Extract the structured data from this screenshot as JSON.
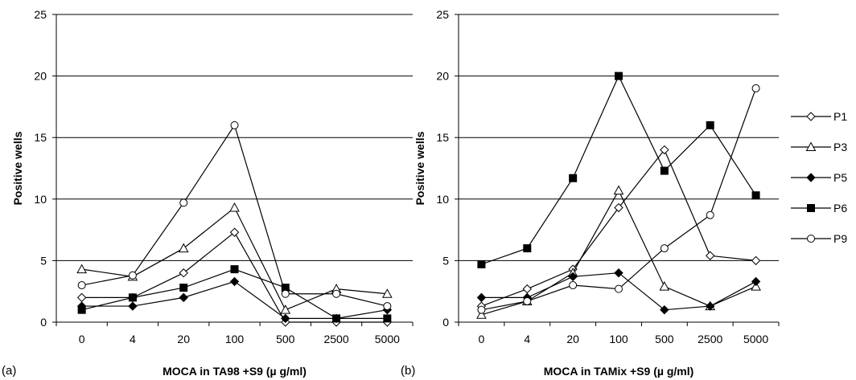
{
  "chart_data": [
    {
      "type": "line",
      "panel_label": "(a)",
      "xlabel": "MOCA in TA98 +S9 (µ g/ml)",
      "ylabel": "Positive wells",
      "categories": [
        "0",
        "4",
        "20",
        "100",
        "500",
        "2500",
        "5000"
      ],
      "ylim": [
        0,
        25
      ],
      "yticks": [
        "0",
        "5",
        "10",
        "15",
        "20",
        "25"
      ],
      "grid": "horizontal",
      "series": [
        {
          "name": "P1",
          "marker": "diamond-open",
          "values": [
            2.0,
            2.0,
            4.0,
            7.3,
            0.0,
            0.0,
            0.0
          ]
        },
        {
          "name": "P3",
          "marker": "triangle-open",
          "values": [
            4.3,
            3.7,
            6.0,
            9.3,
            1.0,
            2.7,
            2.3
          ]
        },
        {
          "name": "P5",
          "marker": "diamond-filled",
          "values": [
            1.3,
            1.3,
            2.0,
            3.3,
            0.3,
            0.3,
            1.0
          ]
        },
        {
          "name": "P6",
          "marker": "square-filled",
          "values": [
            1.0,
            2.0,
            2.8,
            4.3,
            2.8,
            0.3,
            0.3
          ]
        },
        {
          "name": "P9",
          "marker": "circle-open",
          "values": [
            3.0,
            3.8,
            9.7,
            16.0,
            2.3,
            2.3,
            1.3
          ]
        }
      ]
    },
    {
      "type": "line",
      "panel_label": "(b)",
      "xlabel": "MOCA in TAMix +S9 (µ g/ml)",
      "ylabel": "Positive wells",
      "categories": [
        "0",
        "4",
        "20",
        "100",
        "500",
        "2500",
        "5000"
      ],
      "ylim": [
        0,
        25
      ],
      "yticks": [
        "0",
        "5",
        "10",
        "15",
        "20",
        "25"
      ],
      "grid": "horizontal",
      "series": [
        {
          "name": "P1",
          "marker": "diamond-open",
          "values": [
            1.3,
            2.7,
            4.3,
            9.3,
            14.0,
            5.4,
            5.0
          ]
        },
        {
          "name": "P3",
          "marker": "triangle-open",
          "values": [
            0.6,
            1.7,
            4.0,
            10.7,
            2.9,
            1.3,
            2.9
          ]
        },
        {
          "name": "P5",
          "marker": "diamond-filled",
          "values": [
            2.0,
            2.0,
            3.7,
            4.0,
            1.0,
            1.3,
            3.3
          ]
        },
        {
          "name": "P6",
          "marker": "square-filled",
          "values": [
            4.7,
            6.0,
            11.7,
            20.0,
            12.3,
            16.0,
            10.3
          ]
        },
        {
          "name": "P9",
          "marker": "circle-open",
          "values": [
            1.0,
            1.7,
            3.0,
            2.7,
            6.0,
            8.7,
            19.0
          ]
        }
      ]
    }
  ],
  "legend": {
    "placement": "right",
    "items": [
      "P1",
      "P3",
      "P5",
      "P6",
      "P9"
    ]
  }
}
